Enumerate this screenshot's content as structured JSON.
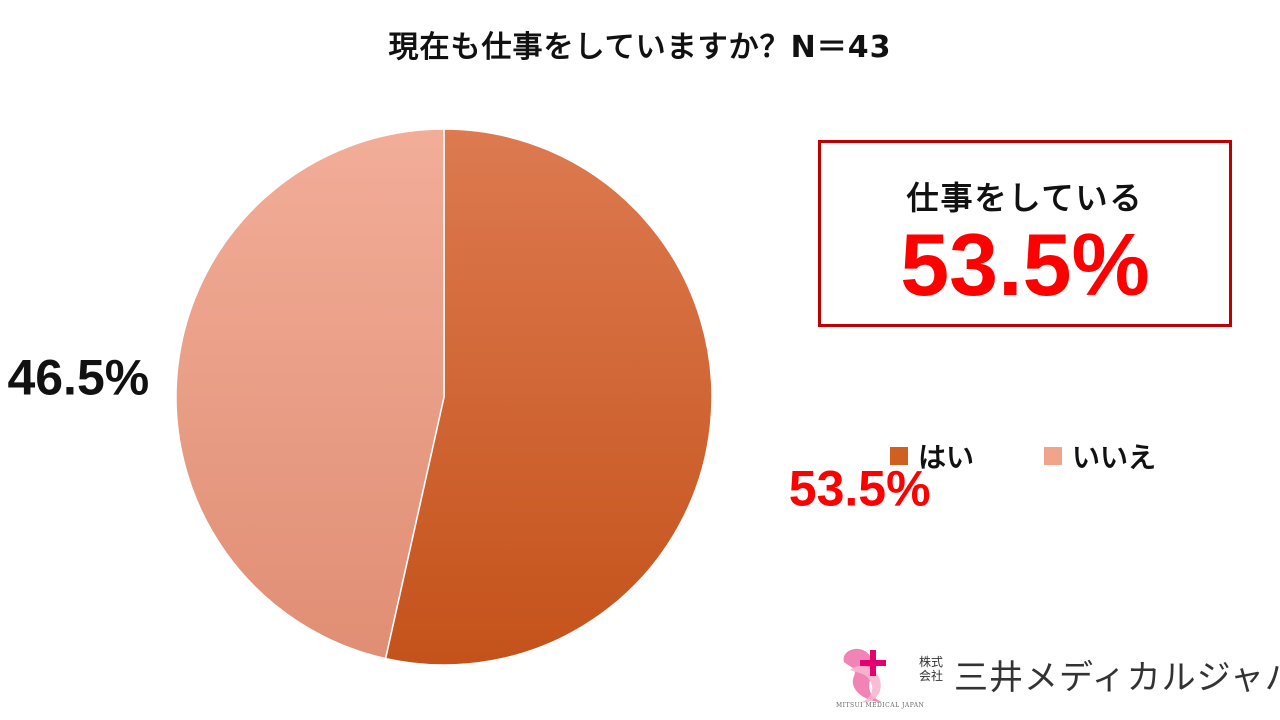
{
  "chart_data": {
    "type": "pie",
    "title": "現在も仕事をしていますか？N＝43",
    "categories": [
      "はい",
      "いいえ"
    ],
    "values": [
      53.5,
      46.5
    ],
    "data_labels": [
      "53.5%",
      "46.5%"
    ],
    "colors": [
      "#d0601f",
      "#f0a48a"
    ],
    "label_colors": [
      "#ff0000",
      "#111111"
    ],
    "start_angle": "12 o'clock",
    "direction": "clockwise",
    "legend_position": "right"
  },
  "callout": {
    "label": "仕事をしている",
    "value": "53.5%",
    "border_color": "#c00000",
    "value_color": "#ff0000"
  },
  "logo": {
    "company_prefix": "株式会社",
    "company_name": "三井メディカルジャパン",
    "english_name": "MITSUI MEDICAL JAPAN",
    "mark_color": "#e4006f"
  }
}
